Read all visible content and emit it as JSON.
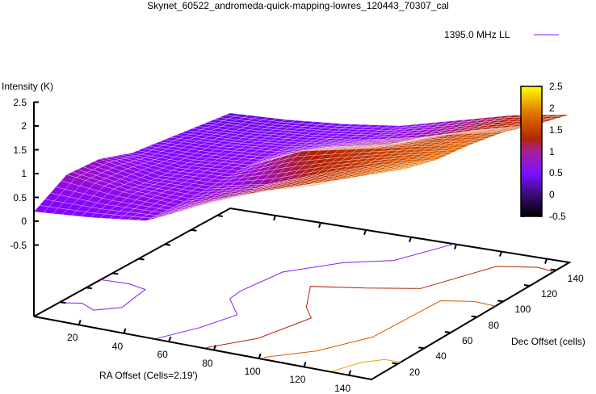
{
  "chart_data": {
    "type": "surface3d",
    "title": "Skynet_60522_andromeda-quick-mapping-lowres_120443_70307_cal",
    "legend": {
      "label": "1395.0 MHz LL",
      "placement": "top-right"
    },
    "xlabel": "RA Offset (Cells=2.19')",
    "ylabel": "Dec Offset (cells)",
    "zlabel": "Intensity (K)",
    "xlim": [
      0,
      150
    ],
    "ylim": [
      0,
      150
    ],
    "zlim": [
      -2.0,
      2.5
    ],
    "x_ticks": [
      "20",
      "40",
      "60",
      "80",
      "100",
      "120",
      "140"
    ],
    "y_ticks": [
      "20",
      "40",
      "60",
      "80",
      "100",
      "120",
      "140"
    ],
    "z_ticks": [
      "2.5",
      "2",
      "1.5",
      "1",
      "0.5",
      "0",
      "-0.5"
    ],
    "colorbar": {
      "range": [
        -0.5,
        2.5
      ],
      "ticks": [
        "2.5",
        "2",
        "1.5",
        "1",
        "0.5",
        "0",
        "-0.5"
      ]
    },
    "grid_ra": [
      0,
      25,
      50,
      75,
      100,
      125,
      150
    ],
    "grid_dec": [
      0,
      25,
      50,
      75,
      100,
      125,
      150
    ],
    "grid_z": [
      [
        0.2,
        0.3,
        0.45,
        1.0,
        1.5,
        1.85,
        2.3
      ],
      [
        0.6,
        0.45,
        0.4,
        0.8,
        1.2,
        1.6,
        2.0
      ],
      [
        0.55,
        0.35,
        0.4,
        0.65,
        1.1,
        1.48,
        1.8
      ],
      [
        0.3,
        0.3,
        0.4,
        0.95,
        1.2,
        1.45,
        1.7
      ],
      [
        0.2,
        0.25,
        0.35,
        0.65,
        0.9,
        1.3,
        1.55
      ],
      [
        0.1,
        0.15,
        0.25,
        0.4,
        0.65,
        1.0,
        1.3
      ],
      [
        0.0,
        0.05,
        0.15,
        0.3,
        0.6,
        0.9,
        1.1
      ]
    ],
    "contours": [
      {
        "level": 0.5,
        "color": "#8a1cf0",
        "points": [
          [
            0,
            19
          ],
          [
            8,
            23
          ],
          [
            16,
            18
          ],
          [
            24,
            26
          ],
          [
            22,
            40
          ],
          [
            21,
            49
          ],
          [
            12,
            52
          ],
          [
            0,
            51
          ]
        ]
      },
      {
        "level": 0.5,
        "color": "#8a1cf0",
        "points": [
          [
            54,
            1
          ],
          [
            62,
            20
          ],
          [
            67,
            40
          ],
          [
            55,
            55
          ],
          [
            54,
            65
          ],
          [
            57,
            92
          ],
          [
            72,
            112
          ],
          [
            88,
            123
          ],
          [
            99,
            150
          ]
        ]
      },
      {
        "level": 1.0,
        "color": "#b02a08",
        "points": [
          [
            76,
            1
          ],
          [
            88,
            20
          ],
          [
            94,
            50
          ],
          [
            86,
            60
          ],
          [
            75,
            82
          ],
          [
            95,
            90
          ],
          [
            114,
            99
          ],
          [
            127,
            134
          ],
          [
            142,
            140
          ],
          [
            150,
            138
          ]
        ]
      },
      {
        "level": 1.5,
        "color": "#d85a00",
        "points": [
          [
            101,
            2
          ],
          [
            115,
            18
          ],
          [
            126,
            42
          ],
          [
            128,
            90
          ],
          [
            140,
            95
          ],
          [
            150,
            94
          ]
        ]
      },
      {
        "level": 2.0,
        "color": "#f0a000",
        "points": [
          [
            132,
            1
          ],
          [
            137,
            15
          ],
          [
            143,
            22
          ],
          [
            150,
            22
          ]
        ]
      }
    ]
  }
}
